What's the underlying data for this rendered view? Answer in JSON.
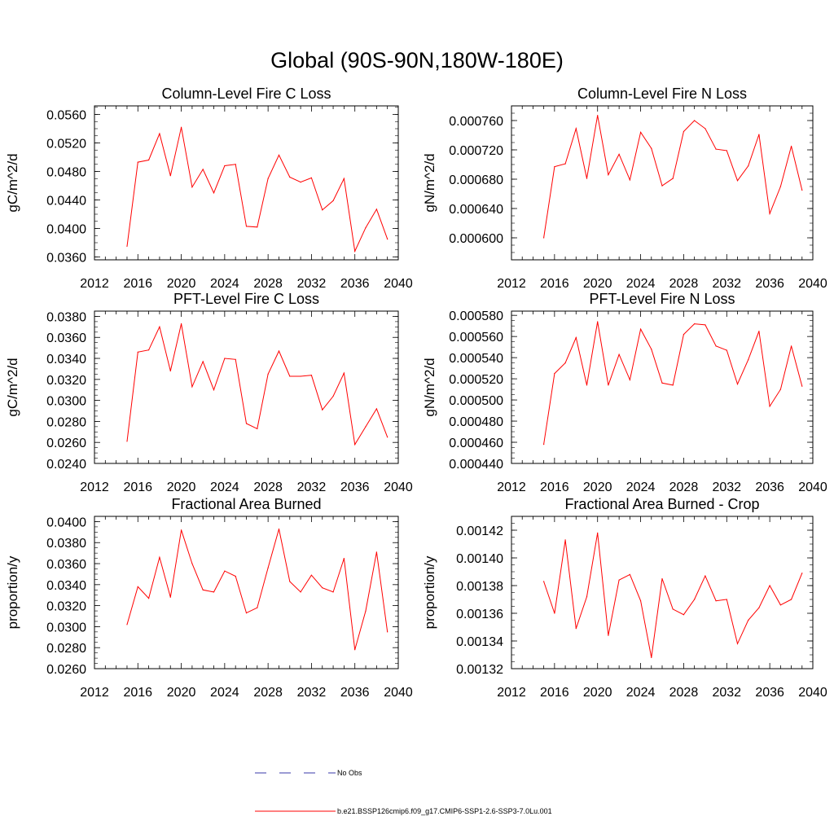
{
  "figure_title": "Global (90S-90N,180W-180E)",
  "legend": {
    "entries": [
      {
        "label": "No Obs",
        "color": "#3a3aa8",
        "style": "dashed"
      },
      {
        "label": "b.e21.BSSP126cmip6.f09_g17.CMIP6-SSP1-2.6-SSP3-7.0Lu.001",
        "color": "#ff0000",
        "style": "solid"
      }
    ]
  },
  "chart_data": [
    {
      "type": "line",
      "title": "Column-Level Fire C Loss",
      "ylabel": "gC/m^2/d",
      "xlim": [
        2012,
        2040
      ],
      "xticks": [
        "2012",
        "2016",
        "2020",
        "2024",
        "2028",
        "2032",
        "2036",
        "2040"
      ],
      "ylim": [
        0.0356,
        0.0572
      ],
      "yticks": [
        "0.0360",
        "0.0400",
        "0.0440",
        "0.0480",
        "0.0520",
        "0.0560"
      ],
      "x": [
        2015,
        2016,
        2017,
        2018,
        2019,
        2020,
        2021,
        2022,
        2023,
        2024,
        2025,
        2026,
        2027,
        2028,
        2029,
        2030,
        2031,
        2032,
        2033,
        2034,
        2035,
        2036,
        2037,
        2038,
        2039
      ],
      "series": [
        {
          "color": "#ff0000",
          "values": [
            0.0375,
            0.0493,
            0.0496,
            0.0533,
            0.0474,
            0.0542,
            0.0458,
            0.0483,
            0.045,
            0.0488,
            0.049,
            0.0403,
            0.0402,
            0.047,
            0.0503,
            0.0472,
            0.0465,
            0.0471,
            0.0426,
            0.0439,
            0.047,
            0.0368,
            0.0401,
            0.0427,
            0.0385
          ]
        }
      ]
    },
    {
      "type": "line",
      "title": "Column-Level Fire N Loss",
      "ylabel": "gN/m^2/d",
      "xlim": [
        2012,
        2040
      ],
      "xticks": [
        "2012",
        "2016",
        "2020",
        "2024",
        "2028",
        "2032",
        "2036",
        "2040"
      ],
      "ylim": [
        0.00057,
        0.00078
      ],
      "yticks": [
        "0.000600",
        "0.000640",
        "0.000680",
        "0.000720",
        "0.000760"
      ],
      "x": [
        2015,
        2016,
        2017,
        2018,
        2019,
        2020,
        2021,
        2022,
        2023,
        2024,
        2025,
        2026,
        2027,
        2028,
        2029,
        2030,
        2031,
        2032,
        2033,
        2034,
        2035,
        2036,
        2037,
        2038,
        2039
      ],
      "series": [
        {
          "color": "#ff0000",
          "values": [
            0.0006,
            0.000697,
            0.000701,
            0.000749,
            0.000681,
            0.000767,
            0.000686,
            0.000714,
            0.000679,
            0.000744,
            0.000722,
            0.000671,
            0.000681,
            0.000745,
            0.00076,
            0.000749,
            0.000721,
            0.000719,
            0.000678,
            0.000698,
            0.000741,
            0.000633,
            0.00067,
            0.000725,
            0.000665
          ]
        }
      ]
    },
    {
      "type": "line",
      "title": "PFT-Level Fire C Loss",
      "ylabel": "gC/m^2/d",
      "xlim": [
        2012,
        2040
      ],
      "xticks": [
        "2012",
        "2016",
        "2020",
        "2024",
        "2028",
        "2032",
        "2036",
        "2040"
      ],
      "ylim": [
        0.024,
        0.0385
      ],
      "yticks": [
        "0.0240",
        "0.0260",
        "0.0280",
        "0.0300",
        "0.0320",
        "0.0340",
        "0.0360",
        "0.0380"
      ],
      "x": [
        2015,
        2016,
        2017,
        2018,
        2019,
        2020,
        2021,
        2022,
        2023,
        2024,
        2025,
        2026,
        2027,
        2028,
        2029,
        2030,
        2031,
        2032,
        2033,
        2034,
        2035,
        2036,
        2037,
        2038,
        2039
      ],
      "series": [
        {
          "color": "#ff0000",
          "values": [
            0.0261,
            0.0346,
            0.0348,
            0.037,
            0.0328,
            0.0373,
            0.0313,
            0.0337,
            0.031,
            0.034,
            0.0339,
            0.0278,
            0.0273,
            0.0325,
            0.0347,
            0.0323,
            0.0323,
            0.0324,
            0.0291,
            0.0304,
            0.0326,
            0.0258,
            0.0275,
            0.0292,
            0.0265
          ]
        }
      ]
    },
    {
      "type": "line",
      "title": "PFT-Level Fire N Loss",
      "ylabel": "gN/m^2/d",
      "xlim": [
        2012,
        2040
      ],
      "xticks": [
        "2012",
        "2016",
        "2020",
        "2024",
        "2028",
        "2032",
        "2036",
        "2040"
      ],
      "ylim": [
        0.00044,
        0.000584
      ],
      "yticks": [
        "0.000440",
        "0.000460",
        "0.000480",
        "0.000500",
        "0.000520",
        "0.000540",
        "0.000560",
        "0.000580"
      ],
      "x": [
        2015,
        2016,
        2017,
        2018,
        2019,
        2020,
        2021,
        2022,
        2023,
        2024,
        2025,
        2026,
        2027,
        2028,
        2029,
        2030,
        2031,
        2032,
        2033,
        2034,
        2035,
        2036,
        2037,
        2038,
        2039
      ],
      "series": [
        {
          "color": "#ff0000",
          "values": [
            0.000458,
            0.000525,
            0.000535,
            0.000559,
            0.000514,
            0.000574,
            0.000514,
            0.000543,
            0.000519,
            0.000567,
            0.000548,
            0.000516,
            0.000514,
            0.000562,
            0.000572,
            0.000571,
            0.000551,
            0.000547,
            0.000515,
            0.000538,
            0.000565,
            0.000494,
            0.00051,
            0.000551,
            0.000513
          ]
        }
      ]
    },
    {
      "type": "line",
      "title": "Fractional Area Burned",
      "ylabel": "proportion/y",
      "xlim": [
        2012,
        2040
      ],
      "xticks": [
        "2012",
        "2016",
        "2020",
        "2024",
        "2028",
        "2032",
        "2036",
        "2040"
      ],
      "ylim": [
        0.026,
        0.0405
      ],
      "yticks": [
        "0.0260",
        "0.0280",
        "0.0300",
        "0.0320",
        "0.0340",
        "0.0360",
        "0.0380",
        "0.0400"
      ],
      "x": [
        2015,
        2016,
        2017,
        2018,
        2019,
        2020,
        2021,
        2022,
        2023,
        2024,
        2025,
        2026,
        2027,
        2028,
        2029,
        2030,
        2031,
        2032,
        2033,
        2034,
        2035,
        2036,
        2037,
        2038,
        2039
      ],
      "series": [
        {
          "color": "#ff0000",
          "values": [
            0.0302,
            0.0338,
            0.0327,
            0.0366,
            0.0328,
            0.0392,
            0.036,
            0.0335,
            0.0333,
            0.0353,
            0.0348,
            0.0313,
            0.0318,
            0.0356,
            0.0393,
            0.0343,
            0.0333,
            0.0349,
            0.0337,
            0.0333,
            0.0365,
            0.0278,
            0.0315,
            0.0371,
            0.0295
          ]
        }
      ]
    },
    {
      "type": "line",
      "title": "Fractional Area Burned - Crop",
      "ylabel": "proportion/y",
      "xlim": [
        2012,
        2040
      ],
      "xticks": [
        "2012",
        "2016",
        "2020",
        "2024",
        "2028",
        "2032",
        "2036",
        "2040"
      ],
      "ylim": [
        0.00132,
        0.00143
      ],
      "yticks": [
        "0.00132",
        "0.00134",
        "0.00136",
        "0.00138",
        "0.00140",
        "0.00142"
      ],
      "x": [
        2015,
        2016,
        2017,
        2018,
        2019,
        2020,
        2021,
        2022,
        2023,
        2024,
        2025,
        2026,
        2027,
        2028,
        2029,
        2030,
        2031,
        2032,
        2033,
        2034,
        2035,
        2036,
        2037,
        2038,
        2039
      ],
      "series": [
        {
          "color": "#ff0000",
          "values": [
            0.001383,
            0.00136,
            0.001413,
            0.001349,
            0.001372,
            0.001418,
            0.001344,
            0.001384,
            0.001388,
            0.001369,
            0.001328,
            0.001385,
            0.001363,
            0.001359,
            0.00137,
            0.001387,
            0.001369,
            0.00137,
            0.001338,
            0.001355,
            0.001364,
            0.00138,
            0.001366,
            0.00137,
            0.001389
          ]
        }
      ]
    }
  ]
}
